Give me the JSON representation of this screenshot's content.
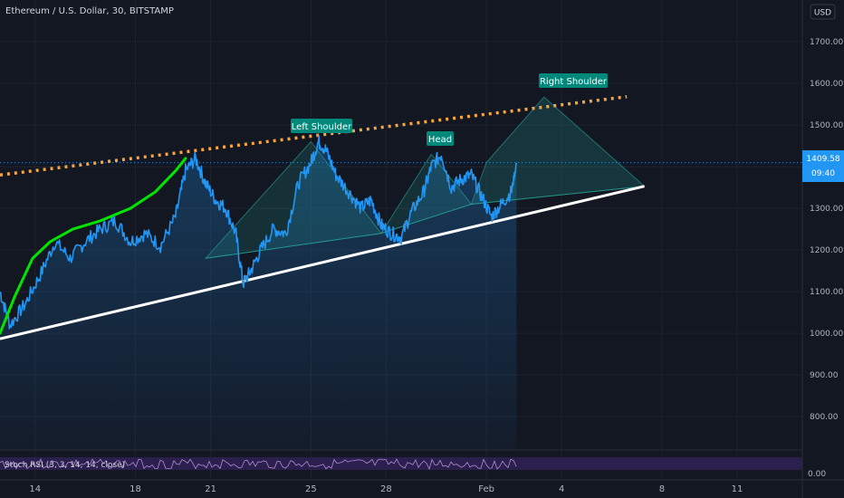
{
  "header": {
    "title": "Ethereum / U.S. Dollar, 30, BITSTAMP",
    "currency_button": "USD"
  },
  "chart_data": {
    "type": "line",
    "title": "Ethereum / U.S. Dollar, 30, BITSTAMP",
    "xlabel": "",
    "ylabel": "",
    "ylim": [
      720,
      1800
    ],
    "y_ticks": [
      800,
      900,
      1000,
      1100,
      1200,
      1300,
      1400,
      1500,
      1600,
      1700
    ],
    "y_tick_labels": [
      "800.00",
      "900.00",
      "1000.00",
      "1100.00",
      "1200.00",
      "1300.00",
      "1400.00",
      "1500.00",
      "1600.00",
      "1700.00"
    ],
    "x_tick_labels": [
      "14",
      "18",
      "21",
      "25",
      "28",
      "Feb",
      "4",
      "8",
      "11"
    ],
    "x_ticks_day": [
      14,
      18,
      21,
      25,
      28,
      32,
      35,
      39,
      42
    ],
    "xlim_day": [
      12.6,
      44.6
    ],
    "grid": true,
    "series": [
      {
        "name": "",
        "color": "#2196f3",
        "x_day": [
          12.6,
          13.0,
          13.6,
          14.2,
          14.8,
          15.4,
          16.0,
          16.6,
          17.2,
          17.8,
          18.4,
          19.0,
          19.6,
          20.0,
          20.4,
          20.8,
          21.2,
          21.6,
          22.0,
          22.3,
          22.6,
          23.0,
          23.5,
          24.0,
          24.5,
          25.0,
          25.3,
          25.6,
          26.0,
          26.5,
          27.0,
          27.4,
          27.8,
          28.2,
          28.6,
          29.0,
          29.5,
          29.8,
          30.2,
          30.6,
          31.0,
          31.4,
          31.8,
          32.2,
          32.6,
          33.0,
          33.2
        ],
        "values": [
          1100,
          1020,
          1070,
          1140,
          1220,
          1180,
          1220,
          1250,
          1270,
          1220,
          1240,
          1210,
          1280,
          1390,
          1420,
          1360,
          1320,
          1300,
          1240,
          1120,
          1150,
          1200,
          1250,
          1240,
          1360,
          1410,
          1460,
          1440,
          1380,
          1340,
          1300,
          1320,
          1260,
          1240,
          1230,
          1290,
          1340,
          1400,
          1430,
          1350,
          1370,
          1380,
          1330,
          1280,
          1310,
          1340,
          1409.58
        ]
      },
      {
        "name": "",
        "color": "#00e600",
        "x_day": [
          12.6,
          13.2,
          13.9,
          14.6,
          15.5,
          16.6,
          17.8,
          18.8,
          19.6,
          20.0
        ],
        "values": [
          1000,
          1090,
          1180,
          1220,
          1250,
          1270,
          1300,
          1340,
          1390,
          1420
        ]
      }
    ],
    "trendlines": [
      {
        "style": "solid",
        "color": "#ffffff",
        "x_day": [
          12.6,
          38.3
        ],
        "values": [
          987,
          1353
        ]
      },
      {
        "style": "dotted",
        "color": "#f7a541",
        "x_day": [
          12.6,
          37.6
        ],
        "values": [
          1380,
          1568
        ]
      }
    ],
    "pattern_points": {
      "x_day": [
        20.8,
        25.0,
        27.8,
        29.8,
        31.4,
        32.0,
        34.3,
        38.3
      ],
      "values": [
        1180,
        1460,
        1240,
        1430,
        1310,
        1410,
        1567,
        1353
      ]
    },
    "current_price": "1409.58",
    "countdown": "09:40",
    "price_color": "#2196f3"
  },
  "annotations": {
    "left_shoulder": "Left Shoulder",
    "head": "Head",
    "right_shoulder": "Right Shoulder"
  },
  "indicator": {
    "label": "Stoch RSI (3, 3, 14, 14, close)",
    "axis_value": "0.00",
    "band_color": "#3d1d66"
  },
  "colors": {
    "background": "#131722",
    "grid": "#1e222d",
    "axis_text": "#b2b5be",
    "label_badge": "#00897b"
  }
}
